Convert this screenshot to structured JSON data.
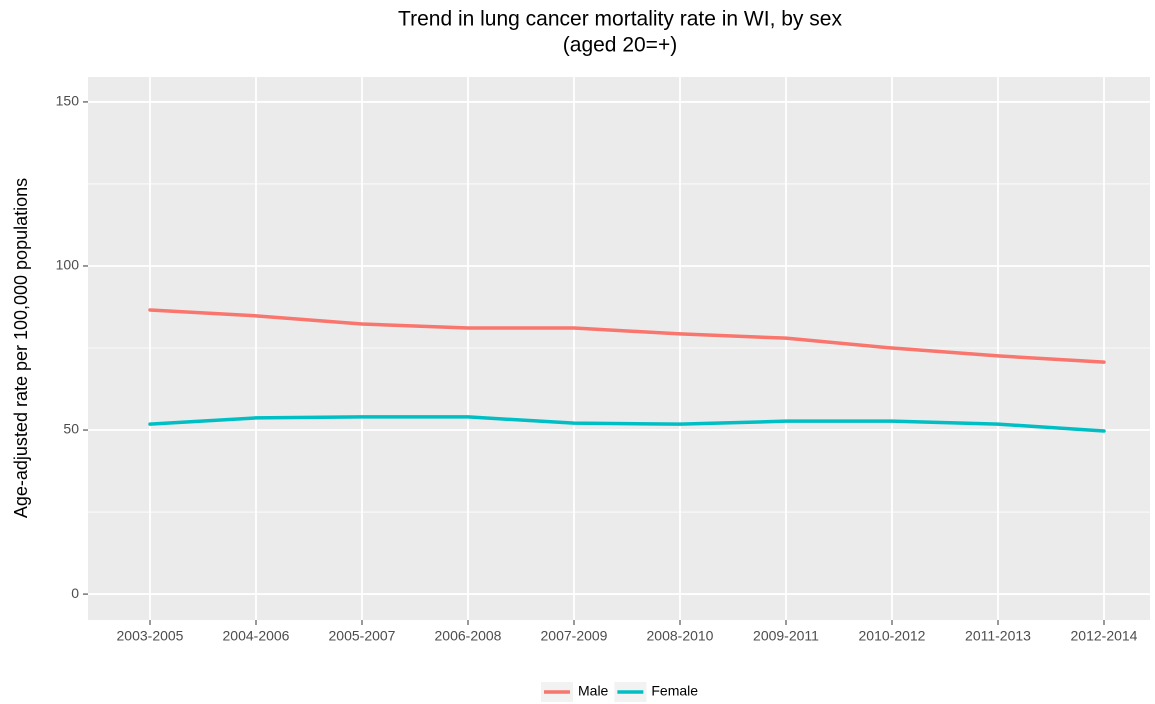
{
  "chart_data": {
    "type": "line",
    "title": "Trend in lung cancer mortality rate in WI, by sex",
    "subtitle": "(aged 20=+)",
    "y_label": "Age-adjusted rate per 100,000 populations",
    "categories": [
      "2003-2005",
      "2004-2006",
      "2005-2007",
      "2006-2008",
      "2007-2009",
      "2008-2010",
      "2009-2011",
      "2010-2012",
      "2011-2013",
      "2012-2014"
    ],
    "series": [
      {
        "name": "Male",
        "color": "#F8766D",
        "values": [
          86.6,
          84.8,
          82.3,
          81.1,
          81.1,
          79.3,
          78.0,
          75.0,
          72.6,
          70.7
        ]
      },
      {
        "name": "Female",
        "color": "#00BFC4",
        "values": [
          51.8,
          53.7,
          54.0,
          54.0,
          52.1,
          51.8,
          52.7,
          52.7,
          51.8,
          49.7
        ]
      }
    ],
    "ylim": [
      -7.9,
      157.6
    ],
    "yticks": [
      0,
      50,
      100,
      150
    ],
    "minor_yticks": [
      25,
      75,
      125
    ],
    "grid": true,
    "legend": "bottom"
  }
}
